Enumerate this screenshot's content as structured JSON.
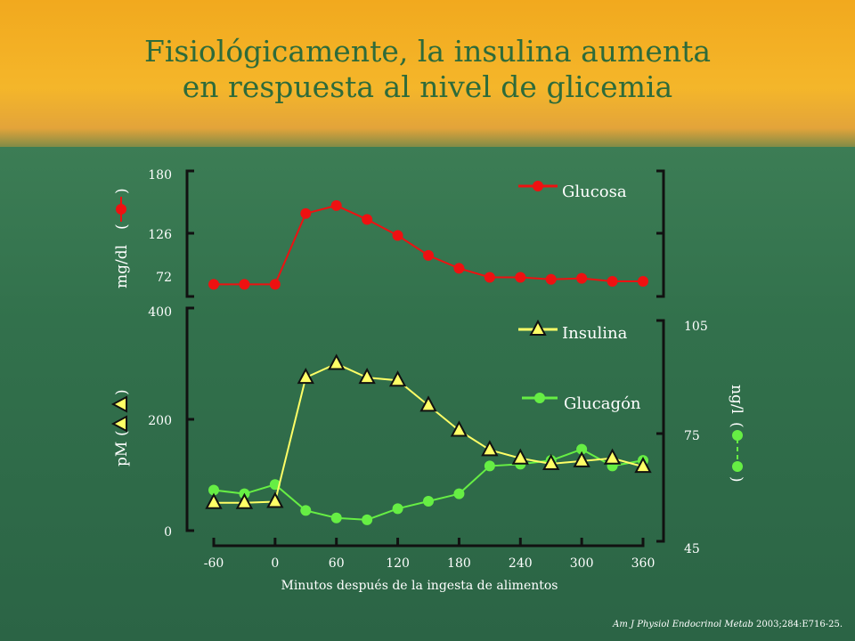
{
  "title": {
    "line1": "Fisiológicamente, la insulina aumenta",
    "line2": "en respuesta al nivel de glicemia"
  },
  "colors": {
    "glucosa": "#ee1111",
    "insulina": "#ffff66",
    "glucagon": "#66ee44",
    "axis": "#111111",
    "text": "#ffffff"
  },
  "chart_data": [
    {
      "type": "line",
      "ylabel": "mg/dl",
      "ylim": [
        72,
        180
      ],
      "yticks": [
        "180",
        "126",
        "72"
      ],
      "x": [
        -60,
        -30,
        0,
        30,
        60,
        90,
        120,
        150,
        180,
        210,
        240,
        270,
        300,
        330,
        360
      ],
      "series": [
        {
          "name": "Glucosa",
          "marker": "circle",
          "values": [
            69,
            69,
            69,
            140,
            148,
            134,
            118,
            98,
            85,
            76,
            76,
            74,
            75,
            72,
            72
          ]
        }
      ],
      "grid": false,
      "legend_placement": "top-right"
    },
    {
      "type": "line",
      "xlabel": "Minutos después de la ingesta de alimentos",
      "xticks": [
        "-60",
        "0",
        "60",
        "120",
        "180",
        "240",
        "300",
        "360"
      ],
      "xlim": [
        -60,
        360
      ],
      "ylabel_left": "pM",
      "ylim_left": [
        0,
        400
      ],
      "yticks_left": [
        "400",
        "200",
        "0"
      ],
      "ylabel_right": "ng/l",
      "ylim_right": [
        45,
        105
      ],
      "yticks_right": [
        "105",
        "75",
        "45"
      ],
      "x": [
        -60,
        -30,
        0,
        30,
        60,
        90,
        120,
        150,
        180,
        210,
        240,
        270,
        300,
        330,
        360
      ],
      "series": [
        {
          "name": "Insulina",
          "axis": "left",
          "marker": "triangle",
          "values": [
            50,
            50,
            52,
            275,
            300,
            275,
            270,
            225,
            180,
            145,
            130,
            120,
            125,
            130,
            115
          ]
        },
        {
          "name": "Glucagón",
          "axis": "right",
          "marker": "circle",
          "values": [
            60,
            59,
            61.5,
            54.5,
            52.5,
            52,
            55,
            57,
            59,
            66.5,
            67,
            68,
            71,
            66.5,
            68
          ]
        }
      ],
      "grid": false,
      "legend_placement": "top-right"
    }
  ],
  "legend": {
    "glucosa": "Glucosa",
    "insulina": "Insulina",
    "glucagon": "Glucagón"
  },
  "citation": {
    "journal": "Am J Physiol Endocrinol Metab",
    "ref": " 2003;284:E716-25."
  }
}
